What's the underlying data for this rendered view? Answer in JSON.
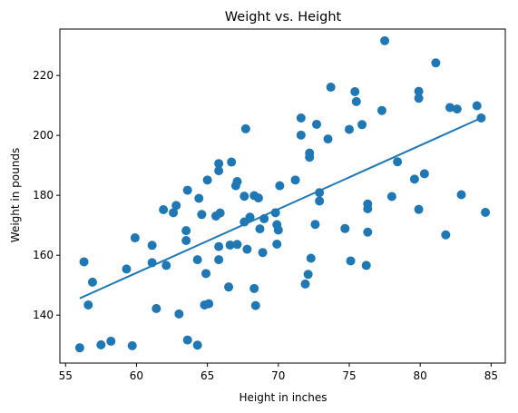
{
  "chart_data": {
    "type": "scatter",
    "title": "Weight vs. Height",
    "xlabel": "Height in inches",
    "ylabel": "Weight in pounds",
    "xlim": [
      54.6,
      86.0
    ],
    "ylim": [
      124.0,
      235.5
    ],
    "xticks": [
      55,
      60,
      65,
      70,
      75,
      80,
      85
    ],
    "yticks": [
      140,
      160,
      180,
      200,
      220
    ],
    "grid": false,
    "legend": "none",
    "color": "#1f77b4",
    "points": [
      [
        56.0,
        129.1
      ],
      [
        56.3,
        157.8
      ],
      [
        56.6,
        143.4
      ],
      [
        56.9,
        151.0
      ],
      [
        57.5,
        130.1
      ],
      [
        58.2,
        131.3
      ],
      [
        59.3,
        155.4
      ],
      [
        59.7,
        129.8
      ],
      [
        59.9,
        165.8
      ],
      [
        61.1,
        163.3
      ],
      [
        61.1,
        157.5
      ],
      [
        61.4,
        142.2
      ],
      [
        61.9,
        175.2
      ],
      [
        62.1,
        156.6
      ],
      [
        62.6,
        174.2
      ],
      [
        62.8,
        176.6
      ],
      [
        63.0,
        140.4
      ],
      [
        63.5,
        168.2
      ],
      [
        63.5,
        164.9
      ],
      [
        63.6,
        181.7
      ],
      [
        63.6,
        131.7
      ],
      [
        64.3,
        130.0
      ],
      [
        64.3,
        158.5
      ],
      [
        64.4,
        179.0
      ],
      [
        64.6,
        173.6
      ],
      [
        64.8,
        143.4
      ],
      [
        64.9,
        153.9
      ],
      [
        65.0,
        185.1
      ],
      [
        65.1,
        143.8
      ],
      [
        65.6,
        173.1
      ],
      [
        65.8,
        190.6
      ],
      [
        65.8,
        188.2
      ],
      [
        65.8,
        162.9
      ],
      [
        65.8,
        158.5
      ],
      [
        65.9,
        174.1
      ],
      [
        66.5,
        149.4
      ],
      [
        66.6,
        163.4
      ],
      [
        66.7,
        191.1
      ],
      [
        67.0,
        183.2
      ],
      [
        67.1,
        184.6
      ],
      [
        67.1,
        163.6
      ],
      [
        67.6,
        171.1
      ],
      [
        67.6,
        179.7
      ],
      [
        67.7,
        202.2
      ],
      [
        67.8,
        162.0
      ],
      [
        68.0,
        172.7
      ],
      [
        68.3,
        179.9
      ],
      [
        68.3,
        148.9
      ],
      [
        68.4,
        143.2
      ],
      [
        68.6,
        179.1
      ],
      [
        68.7,
        168.8
      ],
      [
        68.9,
        160.9
      ],
      [
        69.0,
        172.2
      ],
      [
        69.8,
        174.2
      ],
      [
        69.9,
        163.7
      ],
      [
        69.9,
        170.2
      ],
      [
        70.0,
        168.4
      ],
      [
        70.1,
        183.2
      ],
      [
        71.2,
        185.1
      ],
      [
        71.6,
        205.8
      ],
      [
        71.6,
        200.1
      ],
      [
        71.9,
        150.4
      ],
      [
        72.1,
        153.6
      ],
      [
        72.2,
        194.1
      ],
      [
        72.2,
        192.7
      ],
      [
        72.3,
        159.0
      ],
      [
        72.6,
        170.3
      ],
      [
        72.7,
        203.7
      ],
      [
        72.9,
        178.1
      ],
      [
        72.9,
        180.9
      ],
      [
        73.5,
        198.8
      ],
      [
        73.7,
        216.1
      ],
      [
        74.7,
        168.9
      ],
      [
        75.0,
        202.0
      ],
      [
        75.1,
        158.1
      ],
      [
        75.4,
        214.6
      ],
      [
        75.5,
        211.3
      ],
      [
        75.9,
        203.6
      ],
      [
        76.2,
        156.6
      ],
      [
        76.3,
        167.7
      ],
      [
        76.3,
        175.5
      ],
      [
        76.3,
        177.1
      ],
      [
        77.3,
        208.3
      ],
      [
        77.5,
        231.6
      ],
      [
        78.0,
        179.6
      ],
      [
        78.4,
        191.2
      ],
      [
        79.6,
        185.4
      ],
      [
        79.9,
        175.3
      ],
      [
        79.9,
        214.7
      ],
      [
        79.9,
        212.4
      ],
      [
        80.3,
        187.2
      ],
      [
        81.1,
        224.2
      ],
      [
        81.8,
        166.8
      ],
      [
        82.1,
        209.3
      ],
      [
        82.6,
        208.8
      ],
      [
        82.9,
        180.2
      ],
      [
        84.0,
        209.9
      ],
      [
        84.3,
        205.8
      ],
      [
        84.6,
        174.3
      ]
    ],
    "regression_line": {
      "x": [
        56.0,
        84.3
      ],
      "y": [
        145.6,
        205.8
      ]
    }
  }
}
